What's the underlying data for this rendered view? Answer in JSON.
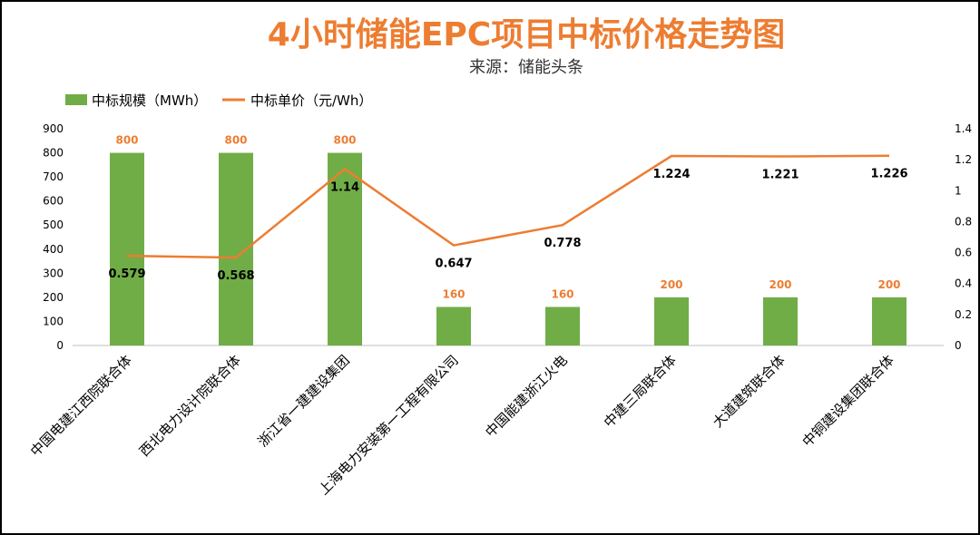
{
  "chart_data": {
    "type": "bar+line",
    "title": "4小时储能EPC项目中标价格走势图",
    "subtitle": "来源：储能头条",
    "categories": [
      "中国电建江西院联合体",
      "西北电力设计院联合体",
      "浙江省一建建设集团",
      "上海电力安装第一工程有限公司",
      "中国能建浙江火电",
      "中建三局联合体",
      "大道建筑联合体",
      "中铜建设集团联合体"
    ],
    "series": [
      {
        "name": "中标规模（MWh）",
        "type": "bar",
        "axis": "left",
        "color": "#70AD47",
        "label_color": "#ED7D31",
        "values": [
          800,
          800,
          800,
          160,
          160,
          200,
          200,
          200
        ]
      },
      {
        "name": "中标单价（元/Wh）",
        "type": "line",
        "axis": "right",
        "color": "#ED7D31",
        "label_color": "#000000",
        "values": [
          0.579,
          0.568,
          1.14,
          0.647,
          0.778,
          1.224,
          1.221,
          1.226
        ]
      }
    ],
    "y_left": {
      "range": [
        0,
        900
      ],
      "ticks": [
        "0",
        "100",
        "200",
        "300",
        "400",
        "500",
        "600",
        "700",
        "800",
        "900"
      ]
    },
    "y_right": {
      "range": [
        0,
        1.4
      ],
      "ticks": [
        "0",
        "0.2",
        "0.4",
        "0.6",
        "0.8",
        "1",
        "1.2",
        "1.4"
      ]
    },
    "legend": "top-left",
    "grid": false,
    "title_color": "#ED7D31"
  }
}
